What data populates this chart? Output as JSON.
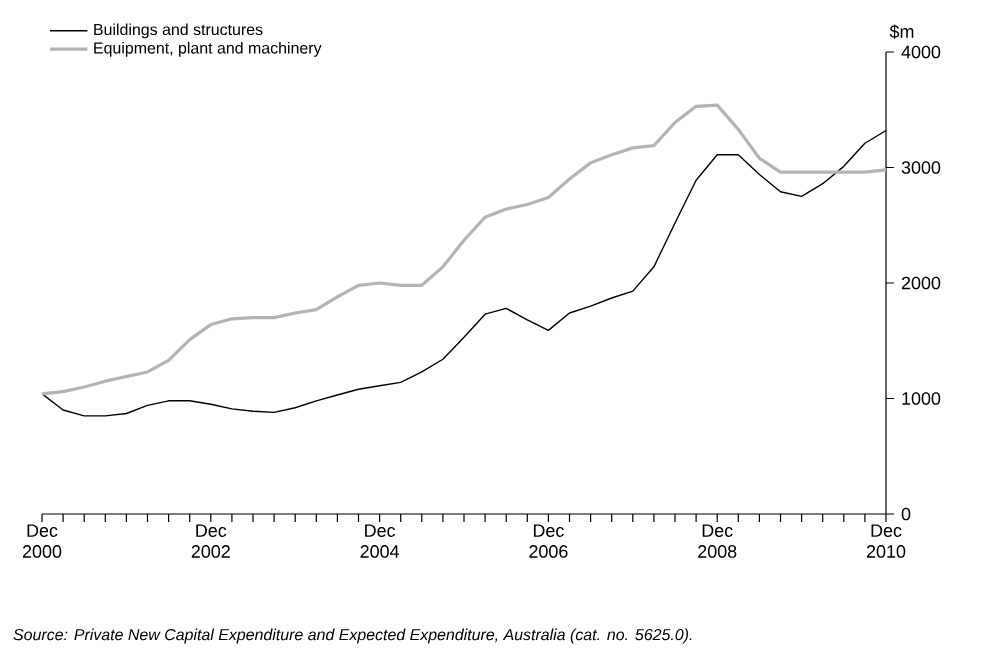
{
  "chart_data": {
    "type": "line",
    "ylabel": "$m",
    "x": [
      "2000-12",
      "2001-03",
      "2001-06",
      "2001-09",
      "2001-12",
      "2002-03",
      "2002-06",
      "2002-09",
      "2002-12",
      "2003-03",
      "2003-06",
      "2003-09",
      "2003-12",
      "2004-03",
      "2004-06",
      "2004-09",
      "2004-12",
      "2005-03",
      "2005-06",
      "2005-09",
      "2005-12",
      "2006-03",
      "2006-06",
      "2006-09",
      "2006-12",
      "2007-03",
      "2007-06",
      "2007-09",
      "2007-12",
      "2008-03",
      "2008-06",
      "2008-09",
      "2008-12",
      "2009-03",
      "2009-06",
      "2009-09",
      "2009-12",
      "2010-03",
      "2010-06",
      "2010-09",
      "2010-12"
    ],
    "series": [
      {
        "name": "Buildings and structures",
        "color": "#000000",
        "values": [
          1040,
          900,
          850,
          850,
          870,
          940,
          980,
          980,
          950,
          910,
          890,
          880,
          920,
          980,
          1030,
          1080,
          1110,
          1140,
          1230,
          1340,
          1530,
          1730,
          1780,
          1680,
          1590,
          1740,
          1800,
          1870,
          1930,
          2140,
          2520,
          2890,
          3110,
          3110,
          2940,
          2790,
          2750,
          2860,
          3010,
          3210,
          3320
        ]
      },
      {
        "name": "Equipment, plant and machinery",
        "color": "#b4b4b4",
        "values": [
          1040,
          1060,
          1100,
          1150,
          1190,
          1230,
          1330,
          1510,
          1640,
          1690,
          1700,
          1700,
          1740,
          1770,
          1880,
          1980,
          2000,
          1980,
          1980,
          2140,
          2370,
          2570,
          2640,
          2680,
          2740,
          2900,
          3040,
          3110,
          3170,
          3190,
          3390,
          3530,
          3540,
          3330,
          3080,
          2960,
          2960,
          2960,
          2960,
          2960,
          2980
        ]
      }
    ],
    "xlim": [
      "2000-12",
      "2010-12"
    ],
    "xticks": [
      {
        "value": "2000-12",
        "label": "Dec 2000"
      },
      {
        "value": "2001-03",
        "label": null
      },
      {
        "value": "2001-06",
        "label": null
      },
      {
        "value": "2001-09",
        "label": null
      },
      {
        "value": "2001-12",
        "label": null
      },
      {
        "value": "2002-03",
        "label": null
      },
      {
        "value": "2002-06",
        "label": null
      },
      {
        "value": "2002-09",
        "label": null
      },
      {
        "value": "2002-12",
        "label": "Dec 2002"
      },
      {
        "value": "2003-03",
        "label": null
      },
      {
        "value": "2003-06",
        "label": null
      },
      {
        "value": "2003-09",
        "label": null
      },
      {
        "value": "2003-12",
        "label": null
      },
      {
        "value": "2004-03",
        "label": null
      },
      {
        "value": "2004-06",
        "label": null
      },
      {
        "value": "2004-09",
        "label": null
      },
      {
        "value": "2004-12",
        "label": "Dec 2004"
      },
      {
        "value": "2005-03",
        "label": null
      },
      {
        "value": "2005-06",
        "label": null
      },
      {
        "value": "2005-09",
        "label": null
      },
      {
        "value": "2005-12",
        "label": null
      },
      {
        "value": "2006-03",
        "label": null
      },
      {
        "value": "2006-06",
        "label": null
      },
      {
        "value": "2006-09",
        "label": null
      },
      {
        "value": "2006-12",
        "label": "Dec 2006"
      },
      {
        "value": "2007-03",
        "label": null
      },
      {
        "value": "2007-06",
        "label": null
      },
      {
        "value": "2007-09",
        "label": null
      },
      {
        "value": "2007-12",
        "label": null
      },
      {
        "value": "2008-03",
        "label": null
      },
      {
        "value": "2008-06",
        "label": null
      },
      {
        "value": "2008-09",
        "label": null
      },
      {
        "value": "2008-12",
        "label": "Dec 2008"
      },
      {
        "value": "2009-03",
        "label": null
      },
      {
        "value": "2009-06",
        "label": null
      },
      {
        "value": "2009-09",
        "label": null
      },
      {
        "value": "2009-12",
        "label": null
      },
      {
        "value": "2010-03",
        "label": null
      },
      {
        "value": "2010-06",
        "label": null
      },
      {
        "value": "2010-09",
        "label": null
      },
      {
        "value": "2010-12",
        "label": "Dec 2010"
      }
    ],
    "ylim": [
      0,
      4000
    ],
    "yticks": [
      0,
      1000,
      2000,
      3000,
      4000
    ],
    "grid": false,
    "legend": "top left",
    "marker": "none",
    "line_style": "solid",
    "annotations": [
      "Source: Private New Capital Expenditure and Expected Expenditure, Australia (cat. no. 5625.0)."
    ]
  }
}
